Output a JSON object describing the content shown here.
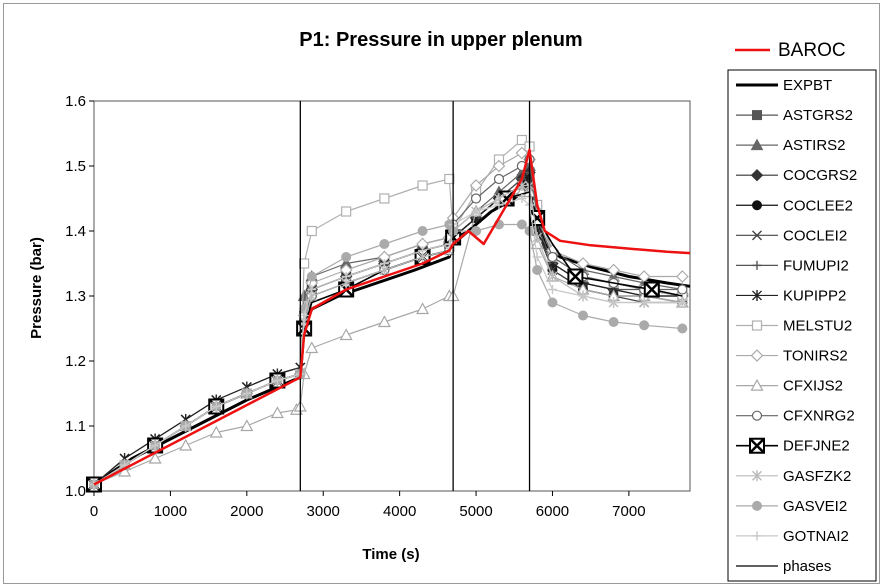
{
  "chart_data": {
    "type": "line",
    "title": "P1: Pressure in upper plenum",
    "xlabel": "Time (s)",
    "ylabel": "Pressure (bar)",
    "xlim": [
      0,
      7800
    ],
    "ylim": [
      1.0,
      1.6
    ],
    "xticks": [
      "0",
      "1000",
      "2000",
      "3000",
      "4000",
      "5000",
      "6000",
      "7000"
    ],
    "xtick_values": [
      0,
      1000,
      2000,
      3000,
      4000,
      5000,
      6000,
      7000
    ],
    "yticks": [
      "1.0",
      "1.1",
      "1.2",
      "1.3",
      "1.4",
      "1.5",
      "1.6"
    ],
    "ytick_values": [
      1.0,
      1.1,
      1.2,
      1.3,
      1.4,
      1.5,
      1.6
    ],
    "phases": [
      2700,
      4700,
      5700
    ],
    "highlight_legend": "BAROC",
    "legend_position": "right",
    "series": [
      {
        "name": "EXPBT",
        "color": "#000000",
        "width": 3,
        "marker": "none",
        "x": [
          0,
          500,
          1000,
          1500,
          2000,
          2500,
          2700,
          2750,
          2850,
          3200,
          3700,
          4200,
          4650,
          4700,
          4900,
          5200,
          5500,
          5700,
          5800,
          5900,
          6100,
          6500,
          7000,
          7500,
          7800
        ],
        "y": [
          1.01,
          1.05,
          1.08,
          1.11,
          1.14,
          1.165,
          1.175,
          1.25,
          1.28,
          1.3,
          1.32,
          1.34,
          1.36,
          1.38,
          1.4,
          1.43,
          1.45,
          1.47,
          1.42,
          1.38,
          1.36,
          1.345,
          1.33,
          1.32,
          1.315
        ]
      },
      {
        "name": "ASTGRS2",
        "color": "#555555",
        "width": 1.2,
        "marker": "square",
        "x": [
          0,
          400,
          800,
          1200,
          1600,
          2000,
          2400,
          2700,
          2750,
          2850,
          3300,
          3800,
          4300,
          4650,
          4700,
          5000,
          5300,
          5600,
          5700,
          5800,
          6000,
          6400,
          6800,
          7200,
          7700
        ],
        "y": [
          1.01,
          1.04,
          1.07,
          1.1,
          1.13,
          1.15,
          1.17,
          1.18,
          1.27,
          1.31,
          1.33,
          1.35,
          1.37,
          1.38,
          1.39,
          1.42,
          1.45,
          1.48,
          1.49,
          1.42,
          1.36,
          1.33,
          1.32,
          1.31,
          1.3
        ]
      },
      {
        "name": "ASTIRS2",
        "color": "#666666",
        "width": 1.2,
        "marker": "triangle",
        "x": [
          0,
          400,
          800,
          1200,
          1600,
          2000,
          2400,
          2700,
          2750,
          2850,
          3300,
          3800,
          4300,
          4650,
          4700,
          5000,
          5300,
          5600,
          5700,
          5800,
          6000,
          6400,
          6800,
          7200,
          7700
        ],
        "y": [
          1.01,
          1.04,
          1.07,
          1.1,
          1.13,
          1.15,
          1.17,
          1.18,
          1.3,
          1.33,
          1.35,
          1.36,
          1.38,
          1.39,
          1.4,
          1.43,
          1.46,
          1.49,
          1.5,
          1.43,
          1.37,
          1.34,
          1.33,
          1.32,
          1.31
        ]
      },
      {
        "name": "COCGRS2",
        "color": "#333333",
        "width": 1.2,
        "marker": "diamond",
        "x": [
          0,
          400,
          800,
          1200,
          1600,
          2000,
          2400,
          2700,
          2750,
          2850,
          3300,
          3800,
          4300,
          4650,
          4700,
          5000,
          5300,
          5600,
          5700,
          5800,
          6000,
          6400,
          6800,
          7200,
          7700
        ],
        "y": [
          1.01,
          1.04,
          1.07,
          1.1,
          1.13,
          1.15,
          1.17,
          1.18,
          1.26,
          1.31,
          1.33,
          1.35,
          1.37,
          1.38,
          1.39,
          1.42,
          1.45,
          1.48,
          1.49,
          1.41,
          1.35,
          1.32,
          1.31,
          1.3,
          1.3
        ]
      },
      {
        "name": "COCLEE2",
        "color": "#111111",
        "width": 1.2,
        "marker": "circle",
        "x": [
          0,
          400,
          800,
          1200,
          1600,
          2000,
          2400,
          2700,
          2750,
          2850,
          3300,
          3800,
          4300,
          4650,
          4700,
          5000,
          5300,
          5600,
          5700,
          5800,
          6000,
          6400,
          6800,
          7200,
          7700
        ],
        "y": [
          1.01,
          1.04,
          1.07,
          1.1,
          1.13,
          1.15,
          1.17,
          1.18,
          1.25,
          1.3,
          1.32,
          1.34,
          1.36,
          1.37,
          1.39,
          1.42,
          1.45,
          1.47,
          1.48,
          1.4,
          1.34,
          1.31,
          1.3,
          1.3,
          1.29
        ]
      },
      {
        "name": "COCLEI2",
        "color": "#444444",
        "width": 1.2,
        "marker": "x",
        "x": [
          0,
          400,
          800,
          1200,
          1600,
          2000,
          2400,
          2700,
          2750,
          2850,
          3300,
          3800,
          4300,
          4650,
          4700,
          5000,
          5300,
          5600,
          5700,
          5800,
          6000,
          6400,
          6800,
          7200,
          7700
        ],
        "y": [
          1.01,
          1.05,
          1.08,
          1.11,
          1.14,
          1.16,
          1.18,
          1.19,
          1.26,
          1.3,
          1.32,
          1.34,
          1.36,
          1.37,
          1.39,
          1.42,
          1.45,
          1.47,
          1.48,
          1.4,
          1.34,
          1.31,
          1.3,
          1.29,
          1.29
        ]
      },
      {
        "name": "FUMUPI2",
        "color": "#555555",
        "width": 1.2,
        "marker": "plus",
        "x": [
          0,
          400,
          800,
          1200,
          1600,
          2000,
          2400,
          2700,
          2750,
          2850,
          3300,
          3800,
          4300,
          4650,
          4700,
          5000,
          5300,
          5600,
          5700,
          5800,
          6000,
          6400,
          6800,
          7200,
          7700
        ],
        "y": [
          1.01,
          1.04,
          1.07,
          1.1,
          1.13,
          1.15,
          1.17,
          1.18,
          1.26,
          1.31,
          1.33,
          1.35,
          1.37,
          1.38,
          1.39,
          1.42,
          1.45,
          1.48,
          1.49,
          1.41,
          1.35,
          1.32,
          1.31,
          1.31,
          1.3
        ]
      },
      {
        "name": "KUPIPP2",
        "color": "#222222",
        "width": 1.2,
        "marker": "star",
        "x": [
          0,
          400,
          800,
          1200,
          1600,
          2000,
          2400,
          2700,
          2750,
          2850,
          3300,
          3800,
          4300,
          4650,
          4700,
          5000,
          5300,
          5600,
          5700,
          5800,
          6000,
          6400,
          6800,
          7200,
          7700
        ],
        "y": [
          1.01,
          1.05,
          1.08,
          1.11,
          1.14,
          1.16,
          1.18,
          1.19,
          1.27,
          1.31,
          1.33,
          1.35,
          1.37,
          1.38,
          1.39,
          1.42,
          1.45,
          1.47,
          1.48,
          1.4,
          1.35,
          1.32,
          1.31,
          1.3,
          1.3
        ]
      },
      {
        "name": "MELSTU2",
        "color": "#b0b0b0",
        "width": 1.2,
        "marker": "square-open",
        "x": [
          0,
          400,
          800,
          1200,
          1600,
          2000,
          2400,
          2700,
          2750,
          2850,
          3300,
          3800,
          4300,
          4650,
          4700,
          5000,
          5300,
          5600,
          5700,
          5800,
          6000,
          6400,
          6800,
          7200,
          7700
        ],
        "y": [
          1.01,
          1.04,
          1.07,
          1.1,
          1.13,
          1.15,
          1.17,
          1.18,
          1.35,
          1.4,
          1.43,
          1.45,
          1.47,
          1.48,
          1.4,
          1.46,
          1.51,
          1.54,
          1.53,
          1.44,
          1.36,
          1.33,
          1.32,
          1.31,
          1.3
        ]
      },
      {
        "name": "TONIRS2",
        "color": "#aaaaaa",
        "width": 1.2,
        "marker": "diamond-open",
        "x": [
          0,
          400,
          800,
          1200,
          1600,
          2000,
          2400,
          2700,
          2750,
          2850,
          3300,
          3800,
          4300,
          4650,
          4700,
          5000,
          5300,
          5600,
          5700,
          5800,
          6000,
          6400,
          6800,
          7200,
          7700
        ],
        "y": [
          1.01,
          1.04,
          1.07,
          1.1,
          1.13,
          1.15,
          1.17,
          1.18,
          1.27,
          1.32,
          1.34,
          1.36,
          1.38,
          1.39,
          1.42,
          1.47,
          1.5,
          1.52,
          1.51,
          1.43,
          1.37,
          1.35,
          1.34,
          1.33,
          1.33
        ]
      },
      {
        "name": "CFXIJS2",
        "color": "#a8a8a8",
        "width": 1.2,
        "marker": "triangle-open",
        "x": [
          0,
          400,
          800,
          1200,
          1600,
          2000,
          2400,
          2650,
          2700,
          2750,
          2850,
          3300,
          3800,
          4300,
          4650,
          4700,
          5000,
          5300,
          5600,
          5700,
          5800,
          6000,
          6400,
          6800,
          7200,
          7700
        ],
        "y": [
          1.01,
          1.03,
          1.05,
          1.07,
          1.09,
          1.1,
          1.12,
          1.125,
          1.13,
          1.18,
          1.22,
          1.24,
          1.26,
          1.28,
          1.3,
          1.3,
          1.43,
          1.45,
          1.46,
          1.46,
          1.38,
          1.33,
          1.31,
          1.3,
          1.3,
          1.29
        ]
      },
      {
        "name": "CFXNRG2",
        "color": "#666666",
        "width": 1.2,
        "marker": "circle-open",
        "x": [
          0,
          400,
          800,
          1200,
          1600,
          2000,
          2400,
          2700,
          2750,
          2850,
          3300,
          3800,
          4300,
          4650,
          4700,
          5000,
          5300,
          5600,
          5700,
          5800,
          6000,
          6400,
          6800,
          7200,
          7700
        ],
        "y": [
          1.01,
          1.04,
          1.07,
          1.1,
          1.13,
          1.15,
          1.17,
          1.18,
          1.25,
          1.3,
          1.32,
          1.34,
          1.36,
          1.37,
          1.41,
          1.45,
          1.48,
          1.5,
          1.51,
          1.42,
          1.36,
          1.33,
          1.32,
          1.31,
          1.31
        ]
      },
      {
        "name": "DEFJNE2",
        "color": "#000000",
        "width": 1.6,
        "marker": "xbox",
        "x": [
          0,
          400,
          800,
          1200,
          1600,
          2000,
          2400,
          2700,
          2750,
          2850,
          3300,
          3800,
          4300,
          4650,
          4700,
          4900,
          5400,
          5700,
          5800,
          6000,
          6300,
          6800,
          7300,
          7700
        ],
        "y": [
          1.01,
          1.04,
          1.07,
          1.1,
          1.13,
          1.15,
          1.17,
          1.18,
          1.25,
          1.29,
          1.31,
          1.34,
          1.36,
          1.37,
          1.39,
          1.4,
          1.45,
          1.46,
          1.42,
          1.38,
          1.33,
          1.32,
          1.31,
          1.3
        ]
      },
      {
        "name": "GASFZK2",
        "color": "#bbbbbb",
        "width": 1.2,
        "marker": "star",
        "x": [
          0,
          400,
          800,
          1200,
          1600,
          2000,
          2400,
          2700,
          2750,
          2850,
          3300,
          3800,
          4300,
          4650,
          4700,
          5000,
          5300,
          5600,
          5700,
          5800,
          6000,
          6400,
          6800,
          7200,
          7700
        ],
        "y": [
          1.01,
          1.04,
          1.07,
          1.1,
          1.13,
          1.15,
          1.17,
          1.18,
          1.26,
          1.3,
          1.32,
          1.34,
          1.36,
          1.37,
          1.4,
          1.43,
          1.45,
          1.47,
          1.47,
          1.39,
          1.33,
          1.3,
          1.29,
          1.29,
          1.29
        ]
      },
      {
        "name": "GASVEI2",
        "color": "#aaaaaa",
        "width": 1.2,
        "marker": "circle",
        "x": [
          0,
          400,
          800,
          1200,
          1600,
          2000,
          2400,
          2700,
          2750,
          2850,
          3300,
          3800,
          4300,
          4650,
          4700,
          5000,
          5300,
          5600,
          5700,
          5800,
          6000,
          6400,
          6800,
          7200,
          7700
        ],
        "y": [
          1.01,
          1.04,
          1.07,
          1.1,
          1.13,
          1.15,
          1.17,
          1.18,
          1.28,
          1.33,
          1.36,
          1.38,
          1.4,
          1.41,
          1.4,
          1.4,
          1.41,
          1.41,
          1.4,
          1.34,
          1.29,
          1.27,
          1.26,
          1.255,
          1.25
        ]
      },
      {
        "name": "GOTNAI2",
        "color": "#c8c8c8",
        "width": 1.2,
        "marker": "plus",
        "x": [
          0,
          400,
          800,
          1200,
          1600,
          2000,
          2400,
          2700,
          2750,
          2850,
          3300,
          3800,
          4300,
          4650,
          4700,
          5000,
          5300,
          5600,
          5700,
          5800,
          6000,
          6400,
          6800,
          7200,
          7700
        ],
        "y": [
          1.01,
          1.04,
          1.07,
          1.1,
          1.13,
          1.15,
          1.17,
          1.18,
          1.27,
          1.31,
          1.33,
          1.35,
          1.37,
          1.38,
          1.41,
          1.43,
          1.44,
          1.45,
          1.44,
          1.36,
          1.31,
          1.3,
          1.29,
          1.29,
          1.29
        ]
      }
    ],
    "baroc": {
      "name": "BAROC",
      "color": "#ee1111",
      "width": 2.5,
      "x": [
        0,
        2700,
        2750,
        2850,
        3300,
        3800,
        4300,
        4650,
        4700,
        4900,
        5100,
        5400,
        5600,
        5700,
        5800,
        5900,
        6100,
        6500,
        7000,
        7500,
        7800
      ],
      "y": [
        1.01,
        1.175,
        1.24,
        1.28,
        1.31,
        1.33,
        1.35,
        1.37,
        1.38,
        1.4,
        1.38,
        1.44,
        1.48,
        1.525,
        1.44,
        1.4,
        1.385,
        1.378,
        1.373,
        1.368,
        1.366
      ]
    }
  }
}
